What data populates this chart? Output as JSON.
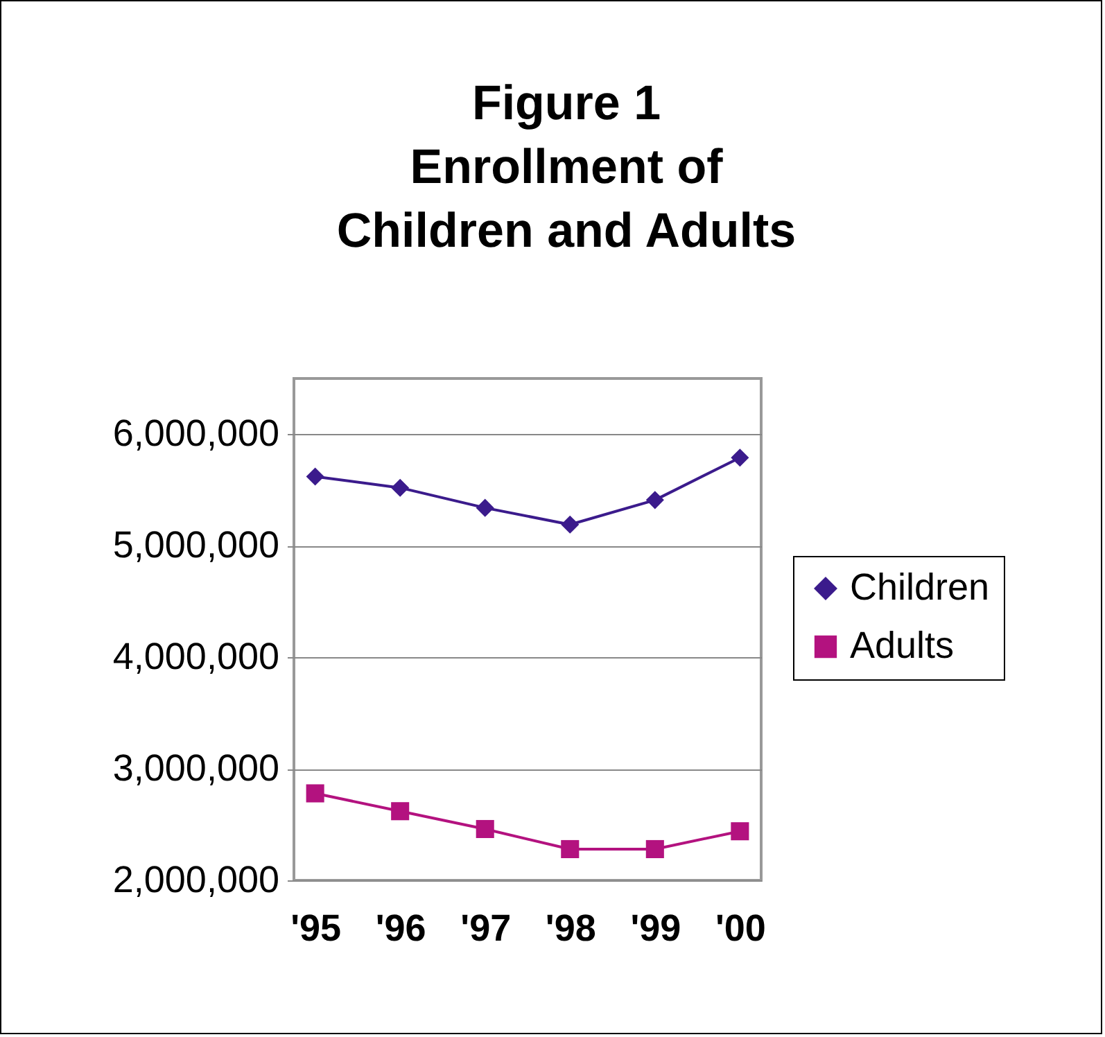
{
  "chart_data": {
    "type": "line",
    "title": "Figure 1\nEnrollment of\nChildren and Adults",
    "categories": [
      "'95",
      "'96",
      "'97",
      "'98",
      "'99",
      "'00"
    ],
    "series": [
      {
        "name": "Children",
        "color": "#3b1b8c",
        "marker": "diamond",
        "values": [
          5620000,
          5520000,
          5340000,
          5190000,
          5410000,
          5790000
        ]
      },
      {
        "name": "Adults",
        "color": "#b3127f",
        "marker": "square",
        "values": [
          2780000,
          2620000,
          2460000,
          2280000,
          2280000,
          2440000
        ]
      }
    ],
    "ylim": [
      2000000,
      6500000
    ],
    "yticks": [
      {
        "value": 2000000,
        "label": "2,000,000"
      },
      {
        "value": 3000000,
        "label": "3,000,000"
      },
      {
        "value": 4000000,
        "label": "4,000,000"
      },
      {
        "value": 5000000,
        "label": "5,000,000"
      },
      {
        "value": 6000000,
        "label": "6,000,000"
      }
    ],
    "grid": "y",
    "legend": "right",
    "line_style": "solid"
  }
}
